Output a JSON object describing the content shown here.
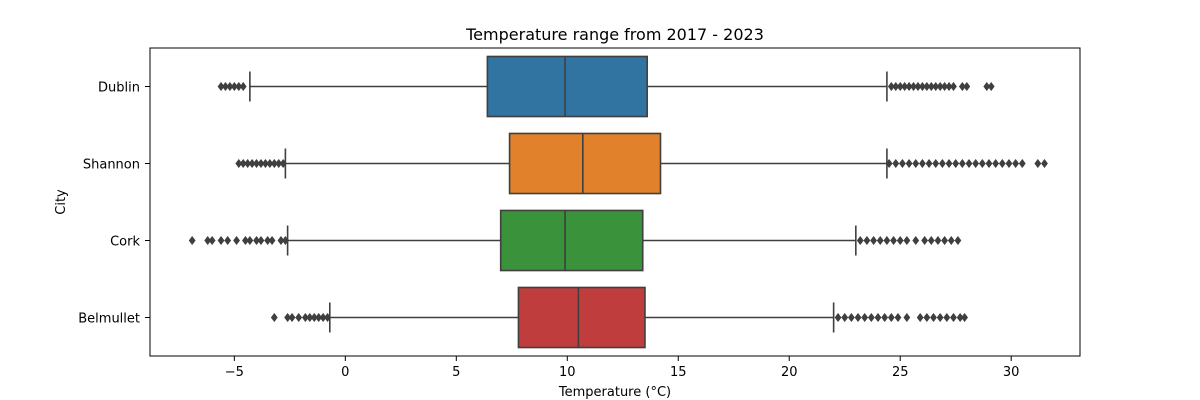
{
  "chart_data": {
    "type": "box",
    "orientation": "horizontal",
    "title": "Temperature range from 2017 - 2023",
    "xlabel": "Temperature (°C)",
    "ylabel": "City",
    "xlim": [
      -8.8,
      33.1
    ],
    "xticks": [
      -5,
      0,
      5,
      10,
      15,
      20,
      25,
      30
    ],
    "xtick_labels": [
      "−5",
      "0",
      "5",
      "10",
      "15",
      "20",
      "25",
      "30"
    ],
    "grid": false,
    "legend": "none",
    "series": [
      {
        "category": "Dublin",
        "color": "#3274a1",
        "whisker_low": -4.3,
        "q1": 6.4,
        "median": 9.9,
        "q3": 13.6,
        "whisker_high": 24.4,
        "outliers": [
          -5.6,
          -5.4,
          -5.2,
          -5.0,
          -4.8,
          -4.6,
          24.6,
          24.8,
          25.0,
          25.2,
          25.4,
          25.6,
          25.8,
          26.0,
          26.2,
          26.4,
          26.6,
          26.8,
          27.0,
          27.2,
          27.4,
          27.8,
          28.0,
          28.9,
          29.1
        ]
      },
      {
        "category": "Shannon",
        "color": "#e1812c",
        "whisker_low": -2.7,
        "q1": 7.4,
        "median": 10.7,
        "q3": 14.2,
        "whisker_high": 24.4,
        "outliers": [
          -4.8,
          -4.6,
          -4.4,
          -4.2,
          -4.0,
          -3.8,
          -3.6,
          -3.4,
          -3.2,
          -3.0,
          -2.8,
          24.5,
          24.8,
          25.1,
          25.4,
          25.7,
          26.0,
          26.3,
          26.6,
          26.9,
          27.2,
          27.5,
          27.8,
          28.1,
          28.4,
          28.7,
          29.0,
          29.3,
          29.6,
          29.9,
          30.2,
          30.5,
          31.2,
          31.5
        ]
      },
      {
        "category": "Cork",
        "color": "#3a923a",
        "whisker_low": -2.6,
        "q1": 7.0,
        "median": 9.9,
        "q3": 13.4,
        "whisker_high": 23.0,
        "outliers": [
          -6.9,
          -6.2,
          -6.0,
          -5.6,
          -5.3,
          -4.9,
          -4.5,
          -4.3,
          -4.0,
          -3.8,
          -3.5,
          -3.3,
          -2.9,
          -2.7,
          23.2,
          23.5,
          23.8,
          24.1,
          24.4,
          24.7,
          25.0,
          25.3,
          25.7,
          26.1,
          26.4,
          26.7,
          27.0,
          27.3,
          27.6
        ]
      },
      {
        "category": "Belmullet",
        "color": "#c03d3e",
        "whisker_low": -0.7,
        "q1": 7.8,
        "median": 10.5,
        "q3": 13.5,
        "whisker_high": 22.0,
        "outliers": [
          -3.2,
          -2.6,
          -2.4,
          -2.1,
          -1.8,
          -1.6,
          -1.4,
          -1.2,
          -1.0,
          -0.8,
          22.2,
          22.5,
          22.8,
          23.1,
          23.4,
          23.7,
          24.0,
          24.3,
          24.6,
          24.9,
          25.3,
          25.9,
          26.2,
          26.5,
          26.8,
          27.1,
          27.4,
          27.7,
          27.9
        ]
      }
    ]
  }
}
